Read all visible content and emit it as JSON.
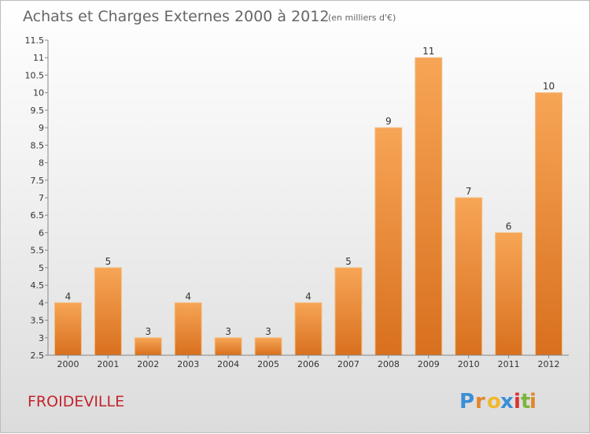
{
  "title": "Achats et Charges Externes 2000 à 2012",
  "subtitle": "(en milliers d'€)",
  "commune": "FROIDEVILLE",
  "logo_text": "Proxiti",
  "colors": {
    "bar_top": "#f7a556",
    "bar_bottom": "#d8701e",
    "bar_edge": "#f4c084",
    "commune": "#c2242c",
    "title": "#666666"
  },
  "chart_data": {
    "type": "bar",
    "categories": [
      "2000",
      "2001",
      "2002",
      "2003",
      "2004",
      "2005",
      "2006",
      "2007",
      "2008",
      "2009",
      "2010",
      "2011",
      "2012"
    ],
    "values": [
      4,
      5,
      3,
      4,
      3,
      3,
      4,
      5,
      9,
      11,
      7,
      6,
      10
    ],
    "ylim": [
      2.5,
      11.5
    ],
    "yticks": [
      "2.5",
      "3",
      "3.5",
      "4",
      "4.5",
      "5",
      "5.5",
      "6",
      "6.5",
      "7",
      "7.5",
      "8",
      "8.5",
      "9",
      "9.5",
      "10",
      "10.5",
      "11",
      "11.5"
    ],
    "grid": false,
    "xlabel": "",
    "ylabel": ""
  }
}
